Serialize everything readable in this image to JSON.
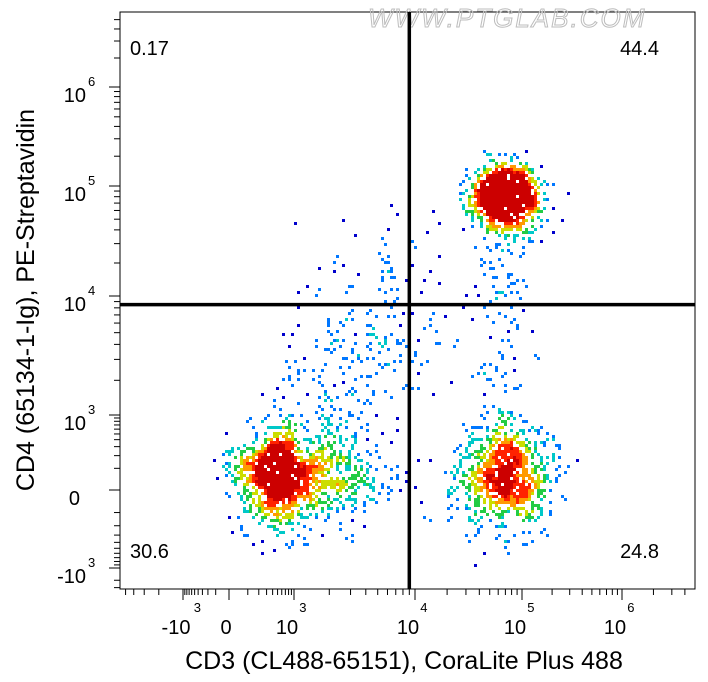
{
  "watermark": "WWW.PTGLAB.COM",
  "chart_data": {
    "type": "scatter",
    "subtype": "flow-cytometry-density-dot-plot",
    "xlabel": "CD3 (CL488-65151), CoraLite Plus 488",
    "ylabel": "CD4 (65134-1-Ig), PE-Streptavidin",
    "x_scale": "biexponential",
    "y_scale": "biexponential",
    "x_ticks": [
      {
        "label": "-10",
        "exp": "3",
        "value": -1000
      },
      {
        "label": "0",
        "exp": "",
        "value": 0
      },
      {
        "label": "10",
        "exp": "3",
        "value": 1000
      },
      {
        "label": "10",
        "exp": "4",
        "value": 10000
      },
      {
        "label": "10",
        "exp": "5",
        "value": 100000
      },
      {
        "label": "10",
        "exp": "6",
        "value": 1000000
      }
    ],
    "y_ticks": [
      {
        "label": "-10",
        "exp": "3",
        "value": -1000
      },
      {
        "label": "0",
        "exp": "",
        "value": 0
      },
      {
        "label": "10",
        "exp": "3",
        "value": 1000
      },
      {
        "label": "10",
        "exp": "4",
        "value": 10000
      },
      {
        "label": "10",
        "exp": "5",
        "value": 100000
      },
      {
        "label": "10",
        "exp": "6",
        "value": 1000000
      }
    ],
    "gate_x": 9000,
    "gate_y": 8500,
    "quadrants": [
      {
        "position": "upper-left",
        "percent": "0.17"
      },
      {
        "position": "upper-right",
        "percent": "44.4"
      },
      {
        "position": "lower-left",
        "percent": "30.6"
      },
      {
        "position": "lower-right",
        "percent": "24.8"
      }
    ],
    "populations": [
      {
        "name": "",
        "center_x": 700,
        "center_y": 50,
        "count": 1400,
        "sx": 0.38,
        "sy": 0.33
      },
      {
        "name": "",
        "center_x": 70000,
        "center_y": 50,
        "count": 900,
        "sx": 0.22,
        "sy": 0.36
      },
      {
        "name": "",
        "center_x": 70000,
        "center_y": 80000,
        "count": 1100,
        "sx": 0.16,
        "sy": 0.16
      }
    ],
    "colors": [
      "#0000cc",
      "#0077ff",
      "#00c8c8",
      "#22cc44",
      "#ccdd00",
      "#ff9900",
      "#ff2200",
      "#cc0000"
    ]
  }
}
